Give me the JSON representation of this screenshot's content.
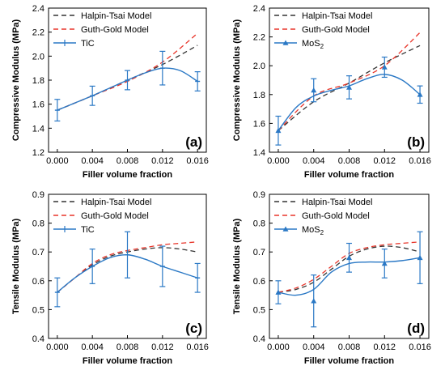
{
  "chart_data": [
    {
      "type": "line",
      "panel_label": "(a)",
      "xlabel": "Filler volume fraction",
      "ylabel": "Compressive Modulus (MPa)",
      "xlim": [
        -0.001,
        0.017
      ],
      "ylim": [
        1.2,
        2.4
      ],
      "xticks": [
        0.0,
        0.004,
        0.008,
        0.012,
        0.016
      ],
      "xtick_labels": [
        "0.000",
        "0.004",
        "0.008",
        "0.012",
        "0.016"
      ],
      "yticks": [
        1.2,
        1.4,
        1.6,
        1.8,
        2.0,
        2.2,
        2.4
      ],
      "ytick_labels": [
        "1.2",
        "1.4",
        "1.6",
        "1.8",
        "2.0",
        "2.2",
        "2.4"
      ],
      "legend_position": "top-left",
      "series": [
        {
          "name": "Halpin-Tsai Model",
          "style": "dash",
          "color": "#333333",
          "x": [
            0.0,
            0.004,
            0.008,
            0.012,
            0.016
          ],
          "y": [
            1.55,
            1.67,
            1.8,
            1.93,
            2.09
          ]
        },
        {
          "name": "Guth-Gold Model",
          "style": "dash",
          "color": "#e8352a",
          "x": [
            0.0,
            0.004,
            0.008,
            0.012,
            0.016
          ],
          "y": [
            1.55,
            1.67,
            1.79,
            1.95,
            2.19
          ]
        },
        {
          "name": "TiC",
          "style": "solid",
          "color": "#2a78c5",
          "marker": "bar",
          "x": [
            0.0,
            0.004,
            0.008,
            0.012,
            0.016
          ],
          "y": [
            1.55,
            1.67,
            1.8,
            1.9,
            1.79
          ],
          "err": [
            0.09,
            0.08,
            0.08,
            0.14,
            0.08
          ],
          "curve": [
            [
              0.0,
              1.55
            ],
            [
              0.002,
              1.61
            ],
            [
              0.004,
              1.67
            ],
            [
              0.006,
              1.735
            ],
            [
              0.008,
              1.8
            ],
            [
              0.01,
              1.86
            ],
            [
              0.012,
              1.9
            ],
            [
              0.014,
              1.88
            ],
            [
              0.016,
              1.79
            ]
          ]
        }
      ]
    },
    {
      "type": "line",
      "panel_label": "(b)",
      "xlabel": "Filler volume fraction",
      "ylabel": "Compressive Modulus (MPa)",
      "xlim": [
        -0.001,
        0.017
      ],
      "ylim": [
        1.4,
        2.4
      ],
      "xticks": [
        0.0,
        0.004,
        0.008,
        0.012,
        0.016
      ],
      "xtick_labels": [
        "0.000",
        "0.004",
        "0.008",
        "0.012",
        "0.016"
      ],
      "yticks": [
        1.4,
        1.6,
        1.8,
        2.0,
        2.2,
        2.4
      ],
      "ytick_labels": [
        "1.4",
        "1.6",
        "1.8",
        "2.0",
        "2.2",
        "2.4"
      ],
      "legend_position": "top-left",
      "series": [
        {
          "name": "Halpin-Tsai Model",
          "style": "dash",
          "color": "#333333",
          "x": [
            0.0,
            0.004,
            0.008,
            0.012,
            0.016
          ],
          "y": [
            1.55,
            1.75,
            1.88,
            2.02,
            2.14
          ]
        },
        {
          "name": "Guth-Gold Model",
          "style": "dash",
          "color": "#e8352a",
          "x": [
            0.0,
            0.004,
            0.008,
            0.012,
            0.016
          ],
          "y": [
            1.55,
            1.79,
            1.88,
            2.0,
            2.23
          ]
        },
        {
          "name": "MoS",
          "name_sub": "2",
          "style": "solid",
          "color": "#2a78c5",
          "marker": "triangle",
          "x": [
            0.0,
            0.004,
            0.008,
            0.012,
            0.016
          ],
          "y": [
            1.55,
            1.83,
            1.85,
            1.99,
            1.8
          ],
          "err": [
            0.1,
            0.08,
            0.08,
            0.07,
            0.06
          ],
          "curve": [
            [
              0.0,
              1.55
            ],
            [
              0.002,
              1.71
            ],
            [
              0.004,
              1.79
            ],
            [
              0.006,
              1.83
            ],
            [
              0.008,
              1.86
            ],
            [
              0.01,
              1.91
            ],
            [
              0.012,
              1.94
            ],
            [
              0.014,
              1.9
            ],
            [
              0.016,
              1.8
            ]
          ]
        }
      ]
    },
    {
      "type": "line",
      "panel_label": "(c)",
      "xlabel": "Filler volume fraction",
      "ylabel": "Tensile Modulus (MPa)",
      "xlim": [
        -0.001,
        0.017
      ],
      "ylim": [
        0.4,
        0.9
      ],
      "xticks": [
        0.0,
        0.004,
        0.008,
        0.012,
        0.016
      ],
      "xtick_labels": [
        "0.000",
        "0.004",
        "0.008",
        "0.012",
        "0.016"
      ],
      "yticks": [
        0.4,
        0.5,
        0.6,
        0.7,
        0.8,
        0.9
      ],
      "ytick_labels": [
        "0.4",
        "0.5",
        "0.6",
        "0.7",
        "0.8",
        "0.9"
      ],
      "legend_position": "top-left",
      "series": [
        {
          "name": "Halpin-Tsai Model",
          "style": "dash",
          "color": "#333333",
          "curve": [
            [
              0.0,
              0.56
            ],
            [
              0.002,
              0.61
            ],
            [
              0.004,
              0.655
            ],
            [
              0.006,
              0.685
            ],
            [
              0.008,
              0.7
            ],
            [
              0.01,
              0.71
            ],
            [
              0.012,
              0.715
            ],
            [
              0.014,
              0.71
            ],
            [
              0.016,
              0.7
            ]
          ]
        },
        {
          "name": "Guth-Gold Model",
          "style": "dash",
          "color": "#e8352a",
          "curve": [
            [
              0.0,
              0.56
            ],
            [
              0.002,
              0.61
            ],
            [
              0.004,
              0.66
            ],
            [
              0.006,
              0.69
            ],
            [
              0.008,
              0.705
            ],
            [
              0.01,
              0.715
            ],
            [
              0.012,
              0.725
            ],
            [
              0.014,
              0.73
            ],
            [
              0.016,
              0.735
            ]
          ]
        },
        {
          "name": "TiC",
          "style": "solid",
          "color": "#2a78c5",
          "marker": "bar",
          "x": [
            0.0,
            0.004,
            0.008,
            0.012,
            0.016
          ],
          "y": [
            0.56,
            0.65,
            0.69,
            0.65,
            0.61
          ],
          "err": [
            0.05,
            0.06,
            0.08,
            0.07,
            0.05
          ],
          "curve": [
            [
              0.0,
              0.56
            ],
            [
              0.002,
              0.61
            ],
            [
              0.004,
              0.65
            ],
            [
              0.006,
              0.68
            ],
            [
              0.008,
              0.69
            ],
            [
              0.01,
              0.675
            ],
            [
              0.012,
              0.65
            ],
            [
              0.014,
              0.63
            ],
            [
              0.016,
              0.61
            ]
          ]
        }
      ]
    },
    {
      "type": "line",
      "panel_label": "(d)",
      "xlabel": "Filler volume fraction",
      "ylabel": "Tensile Modulus (MPa)",
      "xlim": [
        -0.001,
        0.017
      ],
      "ylim": [
        0.4,
        0.9
      ],
      "xticks": [
        0.0,
        0.004,
        0.008,
        0.012,
        0.016
      ],
      "xtick_labels": [
        "0.000",
        "0.004",
        "0.008",
        "0.012",
        "0.016"
      ],
      "yticks": [
        0.4,
        0.5,
        0.6,
        0.7,
        0.8,
        0.9
      ],
      "ytick_labels": [
        "0.4",
        "0.5",
        "0.6",
        "0.7",
        "0.8",
        "0.9"
      ],
      "legend_position": "top-left",
      "series": [
        {
          "name": "Halpin-Tsai Model",
          "style": "dash",
          "color": "#333333",
          "curve": [
            [
              0.0,
              0.56
            ],
            [
              0.002,
              0.57
            ],
            [
              0.004,
              0.595
            ],
            [
              0.006,
              0.64
            ],
            [
              0.008,
              0.685
            ],
            [
              0.01,
              0.71
            ],
            [
              0.012,
              0.72
            ],
            [
              0.014,
              0.715
            ],
            [
              0.016,
              0.7
            ]
          ]
        },
        {
          "name": "Guth-Gold Model",
          "style": "dash",
          "color": "#e8352a",
          "curve": [
            [
              0.0,
              0.56
            ],
            [
              0.002,
              0.575
            ],
            [
              0.004,
              0.605
            ],
            [
              0.006,
              0.65
            ],
            [
              0.008,
              0.695
            ],
            [
              0.01,
              0.715
            ],
            [
              0.012,
              0.725
            ],
            [
              0.014,
              0.73
            ],
            [
              0.016,
              0.735
            ]
          ]
        },
        {
          "name": "MoS",
          "name_sub": "2",
          "style": "solid",
          "color": "#2a78c5",
          "marker": "triangle",
          "x": [
            0.0,
            0.004,
            0.008,
            0.012,
            0.016
          ],
          "y": [
            0.56,
            0.53,
            0.68,
            0.66,
            0.68
          ],
          "err": [
            0.04,
            0.09,
            0.05,
            0.05,
            0.09
          ],
          "curve": [
            [
              0.0,
              0.56
            ],
            [
              0.002,
              0.55
            ],
            [
              0.004,
              0.57
            ],
            [
              0.006,
              0.63
            ],
            [
              0.008,
              0.66
            ],
            [
              0.01,
              0.665
            ],
            [
              0.012,
              0.665
            ],
            [
              0.014,
              0.67
            ],
            [
              0.016,
              0.68
            ]
          ]
        }
      ]
    }
  ]
}
